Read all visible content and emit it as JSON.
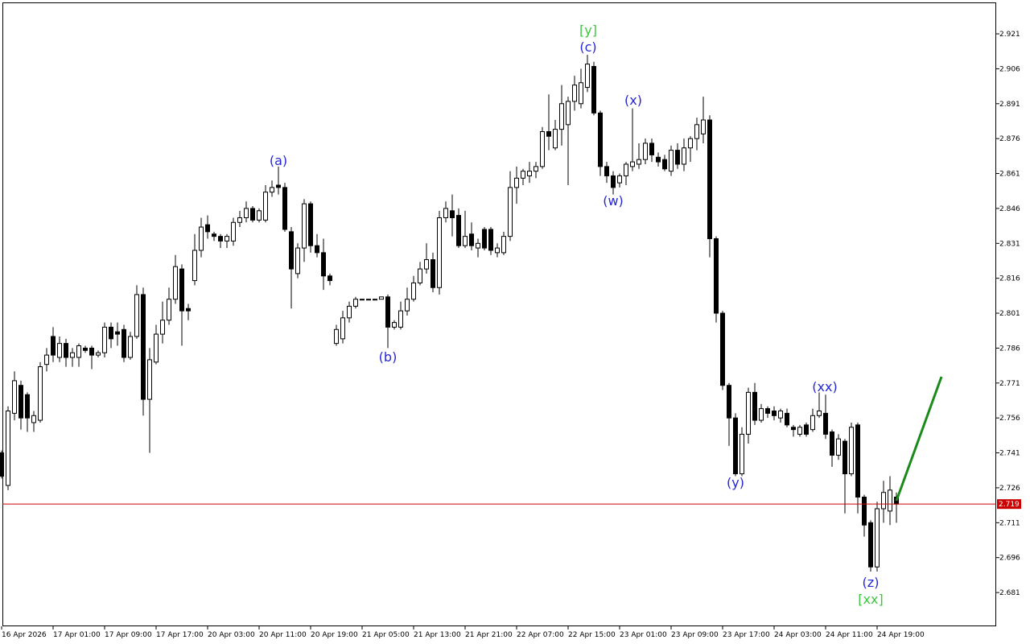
{
  "chart_data": {
    "type": "candlestick",
    "categories": [
      "16 Apr 2026",
      null,
      null,
      null,
      null,
      null,
      null,
      null,
      "17 Apr 01:00",
      null,
      null,
      null,
      null,
      null,
      null,
      null,
      "17 Apr 09:00",
      null,
      null,
      null,
      null,
      null,
      null,
      null,
      "17 Apr 17:00",
      null,
      null,
      null,
      null,
      null,
      null,
      null,
      "20 Apr 03:00",
      null,
      null,
      null,
      null,
      null,
      null,
      null,
      "20 Apr 11:00",
      null,
      null,
      null,
      null,
      null,
      null,
      null,
      "20 Apr 19:00",
      null,
      null,
      null,
      null,
      null,
      null,
      null,
      "21 Apr 05:00",
      null,
      null,
      null,
      null,
      null,
      null,
      null,
      "21 Apr 13:00",
      null,
      null,
      null,
      null,
      null,
      null,
      null,
      "21 Apr 21:00",
      null,
      null,
      null,
      null,
      null,
      null,
      null,
      "22 Apr 07:00",
      null,
      null,
      null,
      null,
      null,
      null,
      null,
      "22 Apr 15:00",
      null,
      null,
      null,
      null,
      null,
      null,
      null,
      "23 Apr 01:00",
      null,
      null,
      null,
      null,
      null,
      null,
      null,
      "23 Apr 09:00",
      null,
      null,
      null,
      null,
      null,
      null,
      null,
      "23 Apr 17:00",
      null,
      null,
      null,
      null,
      null,
      null,
      null,
      "24 Apr 03:00",
      null,
      null,
      null,
      null,
      null,
      null,
      null,
      "24 Apr 11:00",
      null,
      null,
      null,
      null,
      null,
      null,
      null,
      "24 Apr 19:00",
      null,
      null,
      null
    ],
    "open": [
      2.741,
      2.727,
      2.758,
      2.77,
      2.766,
      2.754,
      2.755,
      2.779,
      2.791,
      2.782,
      2.788,
      2.782,
      2.782,
      2.786,
      2.786,
      2.783,
      2.784,
      2.795,
      2.793,
      2.794,
      2.782,
      2.791,
      2.809,
      2.764,
      2.78,
      2.792,
      2.798,
      2.807,
      2.82,
      2.803,
      2.815,
      2.828,
      2.839,
      2.835,
      2.834,
      2.832,
      2.832,
      2.84,
      2.842,
      2.846,
      2.841,
      2.841,
      2.853,
      2.856,
      2.855,
      2.836,
      2.818,
      2.829,
      2.848,
      2.83,
      2.827,
      2.817,
      2.788,
      2.79,
      2.799,
      2.804,
      2.807,
      2.807,
      2.807,
      2.807,
      2.808,
      2.795,
      2.795,
      2.802,
      2.807,
      2.814,
      2.82,
      2.824,
      2.812,
      2.842,
      2.845,
      2.843,
      2.83,
      2.835,
      2.829,
      2.837,
      2.837,
      2.827,
      2.827,
      2.834,
      2.855,
      2.859,
      2.86,
      2.862,
      2.864,
      2.879,
      2.872,
      2.88,
      2.882,
      2.892,
      2.891,
      2.898,
      2.907,
      2.887,
      2.864,
      2.86,
      2.857,
      2.86,
      2.864,
      2.865,
      2.867,
      2.874,
      2.868,
      2.867,
      2.862,
      2.871,
      2.865,
      2.872,
      2.876,
      2.878,
      2.884,
      2.833,
      2.801,
      2.77,
      2.756,
      2.732,
      2.749,
      2.767,
      2.755,
      2.76,
      2.759,
      2.756,
      2.758,
      2.752,
      2.749,
      2.753,
      2.751,
      2.757,
      2.758,
      2.75,
      2.74,
      2.746,
      2.732,
      2.753,
      2.722,
      2.711,
      2.692,
      2.717,
      2.716,
      2.722
    ],
    "high": [
      2.742,
      2.761,
      2.776,
      2.772,
      2.767,
      2.759,
      2.78,
      2.786,
      2.795,
      2.791,
      2.79,
      2.786,
      2.788,
      2.787,
      2.787,
      2.785,
      2.797,
      2.797,
      2.797,
      2.796,
      2.793,
      2.813,
      2.812,
      2.786,
      2.796,
      2.806,
      2.812,
      2.826,
      2.822,
      2.805,
      2.835,
      2.842,
      2.843,
      2.836,
      2.835,
      2.835,
      2.842,
      2.845,
      2.849,
      2.847,
      2.846,
      2.856,
      2.858,
      2.864,
      2.857,
      2.838,
      2.831,
      2.85,
      2.849,
      2.835,
      2.833,
      2.818,
      2.796,
      2.802,
      2.806,
      2.808,
      2.807,
      2.807,
      2.807,
      2.808,
      2.809,
      2.798,
      2.806,
      2.812,
      2.817,
      2.823,
      2.831,
      2.827,
      2.845,
      2.849,
      2.852,
      2.846,
      2.845,
      2.84,
      2.833,
      2.838,
      2.838,
      2.831,
      2.836,
      2.862,
      2.864,
      2.863,
      2.866,
      2.866,
      2.881,
      2.895,
      2.884,
      2.899,
      2.894,
      2.903,
      2.906,
      2.912,
      2.909,
      2.888,
      2.866,
      2.862,
      2.861,
      2.866,
      2.889,
      2.874,
      2.876,
      2.876,
      2.87,
      2.869,
      2.873,
      2.874,
      2.876,
      2.877,
      2.885,
      2.894,
      2.886,
      2.834,
      2.802,
      2.771,
      2.758,
      2.752,
      2.769,
      2.771,
      2.762,
      2.761,
      2.761,
      2.76,
      2.76,
      2.753,
      2.753,
      2.754,
      2.76,
      2.767,
      2.766,
      2.751,
      2.749,
      2.747,
      2.754,
      2.754,
      2.723,
      2.712,
      2.72,
      2.729,
      2.731,
      2.724
    ],
    "low": [
      2.73,
      2.725,
      2.755,
      2.751,
      2.75,
      2.75,
      2.754,
      2.776,
      2.78,
      2.78,
      2.778,
      2.778,
      2.778,
      2.784,
      2.777,
      2.782,
      2.782,
      2.786,
      2.787,
      2.78,
      2.781,
      2.79,
      2.757,
      2.741,
      2.779,
      2.788,
      2.796,
      2.805,
      2.787,
      2.798,
      2.813,
      2.825,
      2.833,
      2.832,
      2.829,
      2.829,
      2.83,
      2.838,
      2.84,
      2.84,
      2.84,
      2.84,
      2.851,
      2.852,
      2.836,
      2.803,
      2.816,
      2.823,
      2.827,
      2.825,
      2.811,
      2.813,
      2.787,
      2.788,
      2.797,
      2.803,
      2.807,
      2.807,
      2.807,
      2.807,
      2.786,
      2.794,
      2.794,
      2.8,
      2.806,
      2.813,
      2.818,
      2.81,
      2.809,
      2.84,
      2.834,
      2.829,
      2.829,
      2.828,
      2.825,
      2.828,
      2.826,
      2.825,
      2.826,
      2.832,
      2.848,
      2.856,
      2.857,
      2.859,
      2.863,
      2.871,
      2.871,
      2.873,
      2.856,
      2.888,
      2.889,
      2.896,
      2.886,
      2.86,
      2.857,
      2.852,
      2.855,
      2.856,
      2.862,
      2.863,
      2.865,
      2.866,
      2.864,
      2.862,
      2.86,
      2.863,
      2.862,
      2.866,
      2.871,
      2.874,
      2.825,
      2.797,
      2.768,
      2.744,
      2.731,
      2.731,
      2.745,
      2.753,
      2.754,
      2.756,
      2.755,
      2.754,
      2.752,
      2.748,
      2.748,
      2.748,
      2.75,
      2.756,
      2.747,
      2.735,
      2.738,
      2.715,
      2.731,
      2.715,
      2.705,
      2.69,
      2.69,
      2.711,
      2.71,
      2.711
    ],
    "close": [
      2.731,
      2.759,
      2.772,
      2.756,
      2.756,
      2.757,
      2.778,
      2.783,
      2.783,
      2.788,
      2.782,
      2.784,
      2.787,
      2.785,
      2.783,
      2.784,
      2.795,
      2.79,
      2.792,
      2.782,
      2.791,
      2.809,
      2.764,
      2.781,
      2.792,
      2.798,
      2.807,
      2.821,
      2.802,
      2.802,
      2.828,
      2.838,
      2.836,
      2.834,
      2.832,
      2.834,
      2.84,
      2.842,
      2.846,
      2.841,
      2.845,
      2.853,
      2.855,
      2.855,
      2.837,
      2.82,
      2.829,
      2.848,
      2.83,
      2.827,
      2.817,
      2.815,
      2.794,
      2.799,
      2.804,
      2.807,
      2.807,
      2.807,
      2.807,
      2.808,
      2.795,
      2.797,
      2.802,
      2.807,
      2.814,
      2.82,
      2.824,
      2.812,
      2.842,
      2.846,
      2.842,
      2.83,
      2.834,
      2.83,
      2.831,
      2.829,
      2.828,
      2.829,
      2.834,
      2.855,
      2.859,
      2.862,
      2.862,
      2.864,
      2.879,
      2.877,
      2.88,
      2.891,
      2.892,
      2.899,
      2.9,
      2.908,
      2.887,
      2.864,
      2.86,
      2.855,
      2.86,
      2.865,
      2.866,
      2.867,
      2.874,
      2.869,
      2.866,
      2.863,
      2.871,
      2.865,
      2.872,
      2.876,
      2.882,
      2.884,
      2.833,
      2.801,
      2.77,
      2.756,
      2.732,
      2.749,
      2.767,
      2.755,
      2.76,
      2.758,
      2.757,
      2.759,
      2.753,
      2.751,
      2.752,
      2.749,
      2.757,
      2.759,
      2.749,
      2.74,
      2.747,
      2.732,
      2.752,
      2.722,
      2.71,
      2.692,
      2.717,
      2.724,
      2.725,
      2.719
    ],
    "ylim": [
      2.6665,
      2.9345
    ],
    "yticks": [
      2.921,
      2.906,
      2.891,
      2.876,
      2.861,
      2.846,
      2.831,
      2.816,
      2.801,
      2.786,
      2.771,
      2.756,
      2.741,
      2.726,
      2.711,
      2.696,
      2.681
    ],
    "last_price": 2.719,
    "last_price_color": "#cc0000",
    "up_color": "#ffffff",
    "down_color": "#000000",
    "annotations": [
      "(a)",
      "(b)",
      "[y]",
      "(c)",
      "(x)",
      "(w)",
      "(y)",
      "(xx)",
      "(z)",
      "[xx]"
    ]
  }
}
